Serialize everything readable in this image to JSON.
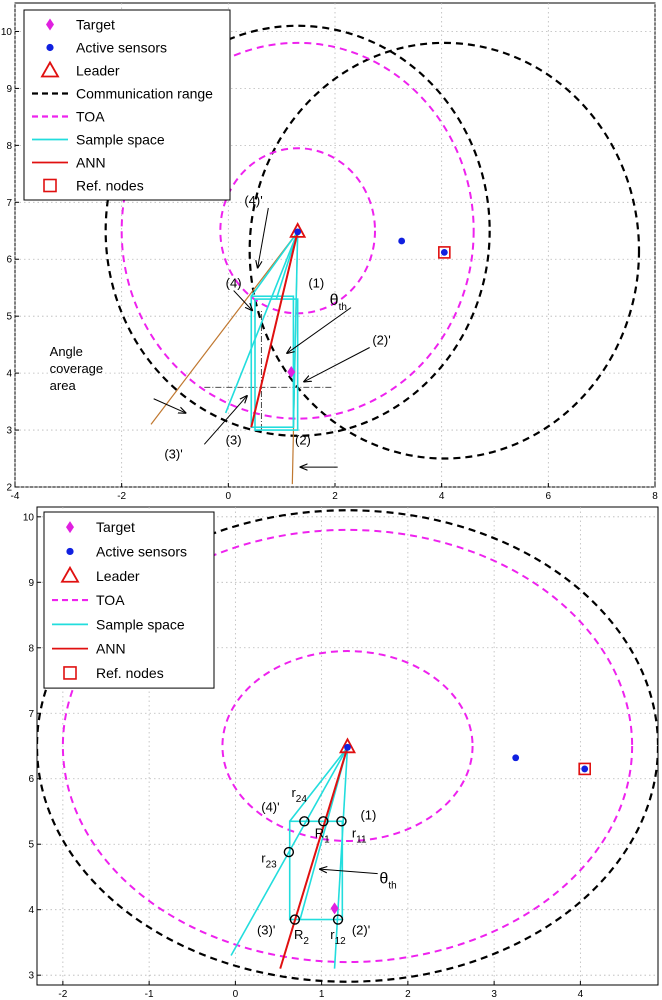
{
  "chart_data": [
    {
      "type": "scatter",
      "title": "",
      "xlabel": "",
      "ylabel": "",
      "xlim": [
        -4,
        8
      ],
      "ylim": [
        2,
        10.5
      ],
      "xticks": [
        "-4",
        "-2",
        "0",
        "2",
        "4",
        "6",
        "8"
      ],
      "yticks": [
        "2",
        "3",
        "4",
        "5",
        "6",
        "7",
        "8",
        "9",
        "10"
      ],
      "grid": true,
      "legend_position": "top-left",
      "legend": [
        {
          "key": "target",
          "label": "Target",
          "color": "#e020e0",
          "marker": "diamond"
        },
        {
          "key": "sensors",
          "label": "Active sensors",
          "color": "#1020e0",
          "marker": "dot"
        },
        {
          "key": "leader",
          "label": "Leader",
          "color": "#e01010",
          "marker": "triangle"
        },
        {
          "key": "comm",
          "label": "Communication range",
          "color": "#000000",
          "marker": "dashed-line"
        },
        {
          "key": "toa",
          "label": "TOA",
          "color": "#ee22ee",
          "marker": "dashed-line"
        },
        {
          "key": "sample",
          "label": "Sample space",
          "color": "#22dddd",
          "marker": "line"
        },
        {
          "key": "ann",
          "label": "ANN",
          "color": "#e01010",
          "marker": "line"
        },
        {
          "key": "ref",
          "label": "Ref. nodes",
          "color": "#e01010",
          "marker": "square"
        }
      ],
      "target": {
        "x": 1.18,
        "y": 4.02
      },
      "leader": {
        "x": 1.3,
        "y": 6.48
      },
      "sensors": [
        {
          "x": 1.3,
          "y": 6.48
        },
        {
          "x": 3.25,
          "y": 6.32
        },
        {
          "x": 4.05,
          "y": 6.12
        }
      ],
      "ref_nodes": [
        {
          "x": 4.05,
          "y": 6.12
        }
      ],
      "comm_circles": [
        {
          "cx": 1.3,
          "cy": 6.5,
          "r": 3.6
        },
        {
          "cx": 4.05,
          "cy": 6.15,
          "r": 3.65
        }
      ],
      "toa_circles": [
        {
          "cx": 1.3,
          "cy": 6.5,
          "r": 3.3
        },
        {
          "cx": 1.3,
          "cy": 6.5,
          "r": 1.45
        }
      ],
      "sample_rects": [
        {
          "x0": 0.43,
          "y0": 3.05,
          "x1": 1.22,
          "y1": 5.35
        },
        {
          "x0": 0.5,
          "y0": 3.0,
          "x1": 1.3,
          "y1": 5.3
        }
      ],
      "sample_lines": [
        {
          "x0": 1.3,
          "y0": 6.48,
          "x1": 0.43,
          "y1": 5.35
        },
        {
          "x0": 1.3,
          "y0": 6.48,
          "x1": -0.05,
          "y1": 3.3
        },
        {
          "x0": 1.3,
          "y0": 6.48,
          "x1": 1.22,
          "y1": 3.05
        },
        {
          "x0": 1.3,
          "y0": 6.48,
          "x1": 0.9,
          "y1": 5.3
        }
      ],
      "ann_line": {
        "x0": 1.3,
        "y0": 6.48,
        "x1": 0.43,
        "y1": 3.05
      },
      "coverage_lines": [
        {
          "x0": 1.3,
          "y0": 6.48,
          "x1": -1.45,
          "y1": 3.1
        },
        {
          "x0": 1.3,
          "y0": 6.48,
          "x1": 1.2,
          "y1": 2.05
        }
      ],
      "dashdot_lines": [
        {
          "x0": -0.45,
          "y0": 3.75,
          "x1": 1.95,
          "y1": 3.75
        },
        {
          "x0": 0.62,
          "y0": 3.0,
          "x1": 0.62,
          "y1": 5.1
        }
      ],
      "labels": [
        {
          "text": "(4)'",
          "x": 0.3,
          "y": 6.95
        },
        {
          "text": "(4)",
          "x": -0.05,
          "y": 5.5
        },
        {
          "text": "(1)",
          "x": 1.5,
          "y": 5.5
        },
        {
          "text": "θ",
          "x": 1.9,
          "y": 5.2,
          "sub": "th"
        },
        {
          "text": "(2)'",
          "x": 2.7,
          "y": 4.5
        },
        {
          "text": "Angle",
          "x": -3.35,
          "y": 4.3
        },
        {
          "text": "coverage",
          "x": -3.35,
          "y": 4.0
        },
        {
          "text": "area",
          "x": -3.35,
          "y": 3.7
        },
        {
          "text": "(3)",
          "x": -0.05,
          "y": 2.75
        },
        {
          "text": "(3)'",
          "x": -1.2,
          "y": 2.5
        },
        {
          "text": "(2)",
          "x": 1.25,
          "y": 2.75
        }
      ],
      "arrows": [
        {
          "x0": 0.75,
          "y0": 6.9,
          "x1": 0.55,
          "y1": 5.85
        },
        {
          "x0": 0.1,
          "y0": 5.45,
          "x1": 0.45,
          "y1": 5.1
        },
        {
          "x0": 2.3,
          "y0": 5.15,
          "x1": 1.1,
          "y1": 4.35
        },
        {
          "x0": 2.65,
          "y0": 4.45,
          "x1": 1.42,
          "y1": 3.85
        },
        {
          "x0": -1.4,
          "y0": 3.55,
          "x1": -0.8,
          "y1": 3.3
        },
        {
          "x0": -0.45,
          "y0": 2.75,
          "x1": 0.35,
          "y1": 3.6
        },
        {
          "x0": 2.05,
          "y0": 2.35,
          "x1": 1.35,
          "y1": 2.35
        }
      ]
    },
    {
      "type": "scatter",
      "title": "",
      "xlabel": "",
      "ylabel": "",
      "xlim": [
        -2.3,
        4.9
      ],
      "ylim": [
        2.85,
        10.15
      ],
      "xticks": [
        "-2",
        "-1",
        "0",
        "1",
        "2",
        "3",
        "4"
      ],
      "xtick_values": [
        -2,
        -1,
        0,
        1,
        2,
        3,
        4
      ],
      "yticks": [
        "3",
        "4",
        "5",
        "6",
        "7",
        "8",
        "9",
        "10"
      ],
      "grid": true,
      "legend_position": "top-left",
      "legend": [
        {
          "key": "target",
          "label": "Target",
          "color": "#e020e0",
          "marker": "diamond"
        },
        {
          "key": "sensors",
          "label": "Active sensors",
          "color": "#1020e0",
          "marker": "dot"
        },
        {
          "key": "leader",
          "label": "Leader",
          "color": "#e01010",
          "marker": "triangle"
        },
        {
          "key": "toa",
          "label": "TOA",
          "color": "#ee22ee",
          "marker": "dashed-line"
        },
        {
          "key": "sample",
          "label": "Sample space",
          "color": "#22dddd",
          "marker": "line"
        },
        {
          "key": "ann",
          "label": "ANN",
          "color": "#e01010",
          "marker": "line"
        },
        {
          "key": "ref",
          "label": "Ref. nodes",
          "color": "#e01010",
          "marker": "square"
        }
      ],
      "target": {
        "x": 1.15,
        "y": 4.02
      },
      "leader": {
        "x": 1.3,
        "y": 6.48
      },
      "sensors": [
        {
          "x": 1.3,
          "y": 6.48
        },
        {
          "x": 3.25,
          "y": 6.32
        },
        {
          "x": 4.05,
          "y": 6.15
        }
      ],
      "ref_nodes": [
        {
          "x": 4.05,
          "y": 6.15
        }
      ],
      "comm_circles": [
        {
          "cx": 1.3,
          "cy": 6.5,
          "r": 3.6
        }
      ],
      "toa_circles": [
        {
          "cx": 1.3,
          "cy": 6.5,
          "r": 3.3
        },
        {
          "cx": 1.3,
          "cy": 6.5,
          "r": 1.45
        }
      ],
      "sample_rects": [
        {
          "x0": 0.63,
          "y0": 3.85,
          "x1": 1.24,
          "y1": 5.35
        }
      ],
      "sample_lines": [
        {
          "x0": 1.3,
          "y0": 6.48,
          "x1": 0.63,
          "y1": 5.35
        },
        {
          "x0": 1.3,
          "y0": 6.48,
          "x1": -0.05,
          "y1": 3.3
        },
        {
          "x0": 1.3,
          "y0": 6.48,
          "x1": 1.15,
          "y1": 3.1
        },
        {
          "x0": 1.3,
          "y0": 6.48,
          "x1": 0.75,
          "y1": 3.85
        }
      ],
      "ann_line": {
        "x0": 1.3,
        "y0": 6.48,
        "x1": 0.52,
        "y1": 3.1
      },
      "coverage_lines": [],
      "dashdot_lines": [],
      "circles_small": [
        {
          "x": 0.8,
          "y": 5.35
        },
        {
          "x": 1.02,
          "y": 5.35
        },
        {
          "x": 1.23,
          "y": 5.35
        },
        {
          "x": 0.62,
          "y": 4.88
        },
        {
          "x": 0.69,
          "y": 3.85
        },
        {
          "x": 1.19,
          "y": 3.85
        }
      ],
      "labels": [
        {
          "text": "r",
          "x": 0.65,
          "y": 5.72,
          "sub": "24"
        },
        {
          "text": "(4)'",
          "x": 0.3,
          "y": 5.5
        },
        {
          "text": "(1)",
          "x": 1.45,
          "y": 5.38
        },
        {
          "text": "R",
          "x": 0.92,
          "y": 5.1,
          "sub": "1"
        },
        {
          "text": "r",
          "x": 1.35,
          "y": 5.1,
          "sub": "11"
        },
        {
          "text": "r",
          "x": 0.3,
          "y": 4.72,
          "sub": "23"
        },
        {
          "text": "θ",
          "x": 1.67,
          "y": 4.4,
          "sub": "th"
        },
        {
          "text": "(3)'",
          "x": 0.25,
          "y": 3.62
        },
        {
          "text": "R",
          "x": 0.68,
          "y": 3.55,
          "sub": "2"
        },
        {
          "text": "r",
          "x": 1.1,
          "y": 3.55,
          "sub": "12"
        },
        {
          "text": "(2)'",
          "x": 1.35,
          "y": 3.62
        }
      ],
      "arrows": [
        {
          "x0": 1.65,
          "y0": 4.55,
          "x1": 0.98,
          "y1": 4.62
        }
      ]
    }
  ]
}
